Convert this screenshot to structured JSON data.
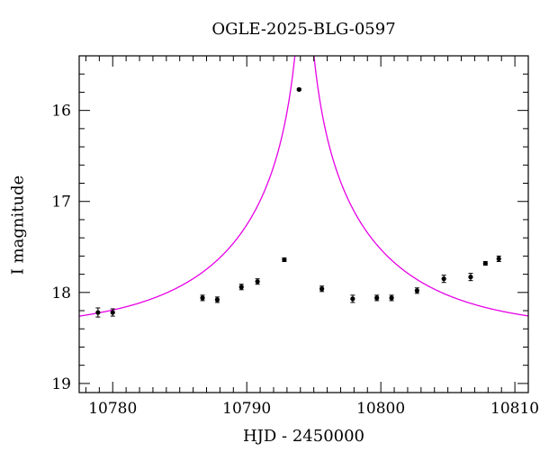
{
  "chart_data": {
    "type": "scatter",
    "title": "OGLE-2025-BLG-0597",
    "xlabel": "HJD - 2450000",
    "ylabel": "I magnitude",
    "xlim": [
      10777.5,
      10811
    ],
    "ylim": [
      19.1,
      15.4
    ],
    "y_inverted": true,
    "grid": false,
    "x_ticks": [
      10780,
      10790,
      10800,
      10810
    ],
    "y_ticks": [
      16,
      17,
      18,
      19
    ],
    "colors": {
      "points": "#000000",
      "model": "#e600e6"
    },
    "series": [
      {
        "kind": "points_with_errorbars",
        "x": [
          10778.9,
          10780.0,
          10786.7,
          10787.8,
          10789.6,
          10790.8,
          10792.8,
          10793.9,
          10795.6,
          10797.9,
          10799.7,
          10800.8,
          10802.7,
          10804.7,
          10806.7,
          10807.8,
          10808.8
        ],
        "y": [
          18.22,
          18.22,
          18.06,
          18.08,
          17.94,
          17.88,
          17.64,
          15.77,
          17.96,
          18.07,
          18.06,
          18.06,
          17.98,
          17.85,
          17.83,
          17.68,
          17.63
        ],
        "err": [
          0.05,
          0.04,
          0.03,
          0.03,
          0.03,
          0.03,
          0.02,
          0.01,
          0.03,
          0.04,
          0.03,
          0.03,
          0.03,
          0.04,
          0.04,
          0.02,
          0.03
        ]
      },
      {
        "kind": "model_curve",
        "baseline_mag": 18.42,
        "t0": 10794.3,
        "tE_days": 12.0,
        "u0": 0.018
      }
    ]
  }
}
